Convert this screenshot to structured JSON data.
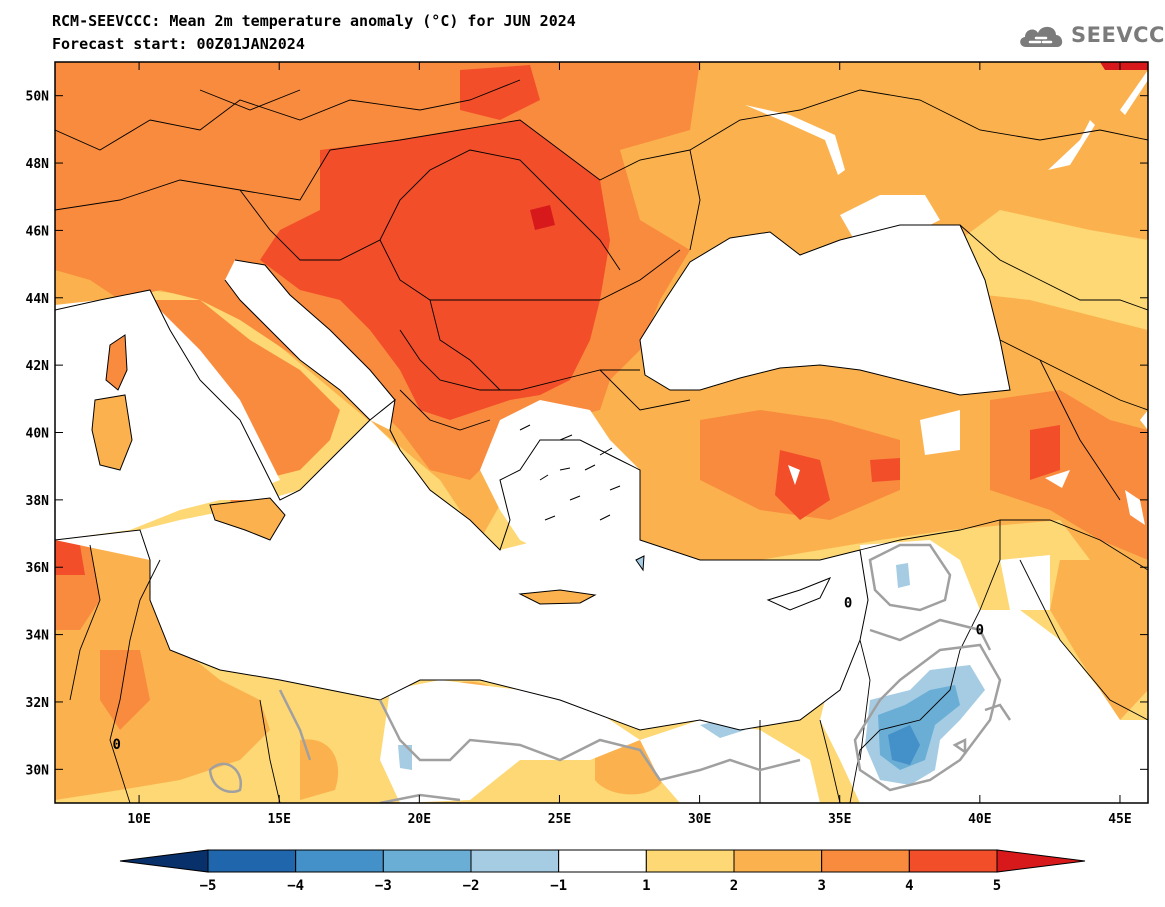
{
  "header": {
    "title_line1": "RCM-SEEVCCC: Mean 2m temperature anomaly (°C) for JUN 2024",
    "title_line2": "Forecast start: 00Z01JAN2024"
  },
  "logo": {
    "text": "SEEVCCC",
    "icon": "cloud-icon",
    "color": "#7b7b7b"
  },
  "map": {
    "lon_range": [
      7,
      46
    ],
    "lat_range": [
      29,
      51
    ],
    "x_ticks": [
      {
        "value": 10,
        "label": "10E"
      },
      {
        "value": 15,
        "label": "15E"
      },
      {
        "value": 20,
        "label": "20E"
      },
      {
        "value": 25,
        "label": "25E"
      },
      {
        "value": 30,
        "label": "30E"
      },
      {
        "value": 35,
        "label": "35E"
      },
      {
        "value": 40,
        "label": "40E"
      },
      {
        "value": 45,
        "label": "45E"
      }
    ],
    "y_ticks": [
      {
        "value": 30,
        "label": "30N"
      },
      {
        "value": 32,
        "label": "32N"
      },
      {
        "value": 34,
        "label": "34N"
      },
      {
        "value": 36,
        "label": "36N"
      },
      {
        "value": 38,
        "label": "38N"
      },
      {
        "value": 40,
        "label": "40N"
      },
      {
        "value": 42,
        "label": "42N"
      },
      {
        "value": 44,
        "label": "44N"
      },
      {
        "value": 46,
        "label": "46N"
      },
      {
        "value": 48,
        "label": "48N"
      },
      {
        "value": 50,
        "label": "50N"
      }
    ],
    "contour_labels": [
      {
        "text": "0",
        "lon": 9.2,
        "lat": 30.6
      },
      {
        "text": "0",
        "lon": 35.3,
        "lat": 34.8
      },
      {
        "text": "0",
        "lon": 40.0,
        "lat": 34.0
      }
    ]
  },
  "colorbar": {
    "colors": [
      "#08306b",
      "#1f66ad",
      "#4490c8",
      "#6aaed6",
      "#a5cce3",
      "#ffffff",
      "#fdd875",
      "#fbb24e",
      "#f98b3e",
      "#f24e2a",
      "#d7191c"
    ],
    "ticks": [
      "−5",
      "−4",
      "−3",
      "−2",
      "−1",
      "1",
      "2",
      "3",
      "4",
      "5"
    ]
  }
}
